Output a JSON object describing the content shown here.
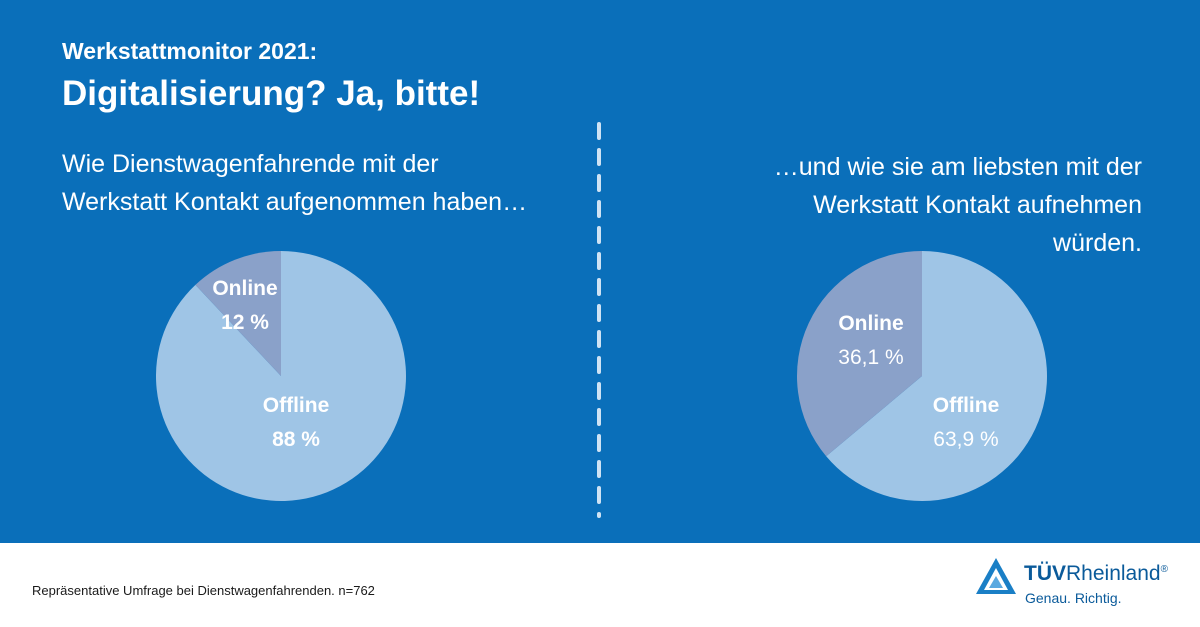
{
  "header": {
    "kicker": "Werkstattmonitor 2021:",
    "headline": "Digitalisierung? Ja, bitte!"
  },
  "colors": {
    "background": "#0a6fba",
    "offline": "#9fc5e6",
    "online": "#8aa1c9",
    "divider": "#cfe3f4",
    "text": "#ffffff",
    "brand": "#0a5a9a"
  },
  "left": {
    "question_lines": [
      "Wie Dienstwagenfahrende mit der",
      "Werkstatt Kontakt aufgenommen haben…"
    ]
  },
  "right": {
    "question_lines": [
      "…und wie sie am liebsten mit der",
      "Werkstatt Kontakt aufnehmen",
      "würden."
    ]
  },
  "chart_data": [
    {
      "type": "pie",
      "slices": [
        {
          "label": "Online",
          "value": 12,
          "value_label": "12 %"
        },
        {
          "label": "Offline",
          "value": 88,
          "value_label": "88 %"
        }
      ]
    },
    {
      "type": "pie",
      "slices": [
        {
          "label": "Online",
          "value": 36.1,
          "value_label": "36,1 %"
        },
        {
          "label": "Offline",
          "value": 63.9,
          "value_label": "63,9 %"
        }
      ]
    }
  ],
  "footer": {
    "note": "Repräsentative Umfrage bei Dienstwagenfahrenden. n=762",
    "logo_tuv": "TÜV",
    "logo_rheinland": "Rheinland",
    "logo_reg": "®",
    "logo_tagline": "Genau. Richtig."
  }
}
